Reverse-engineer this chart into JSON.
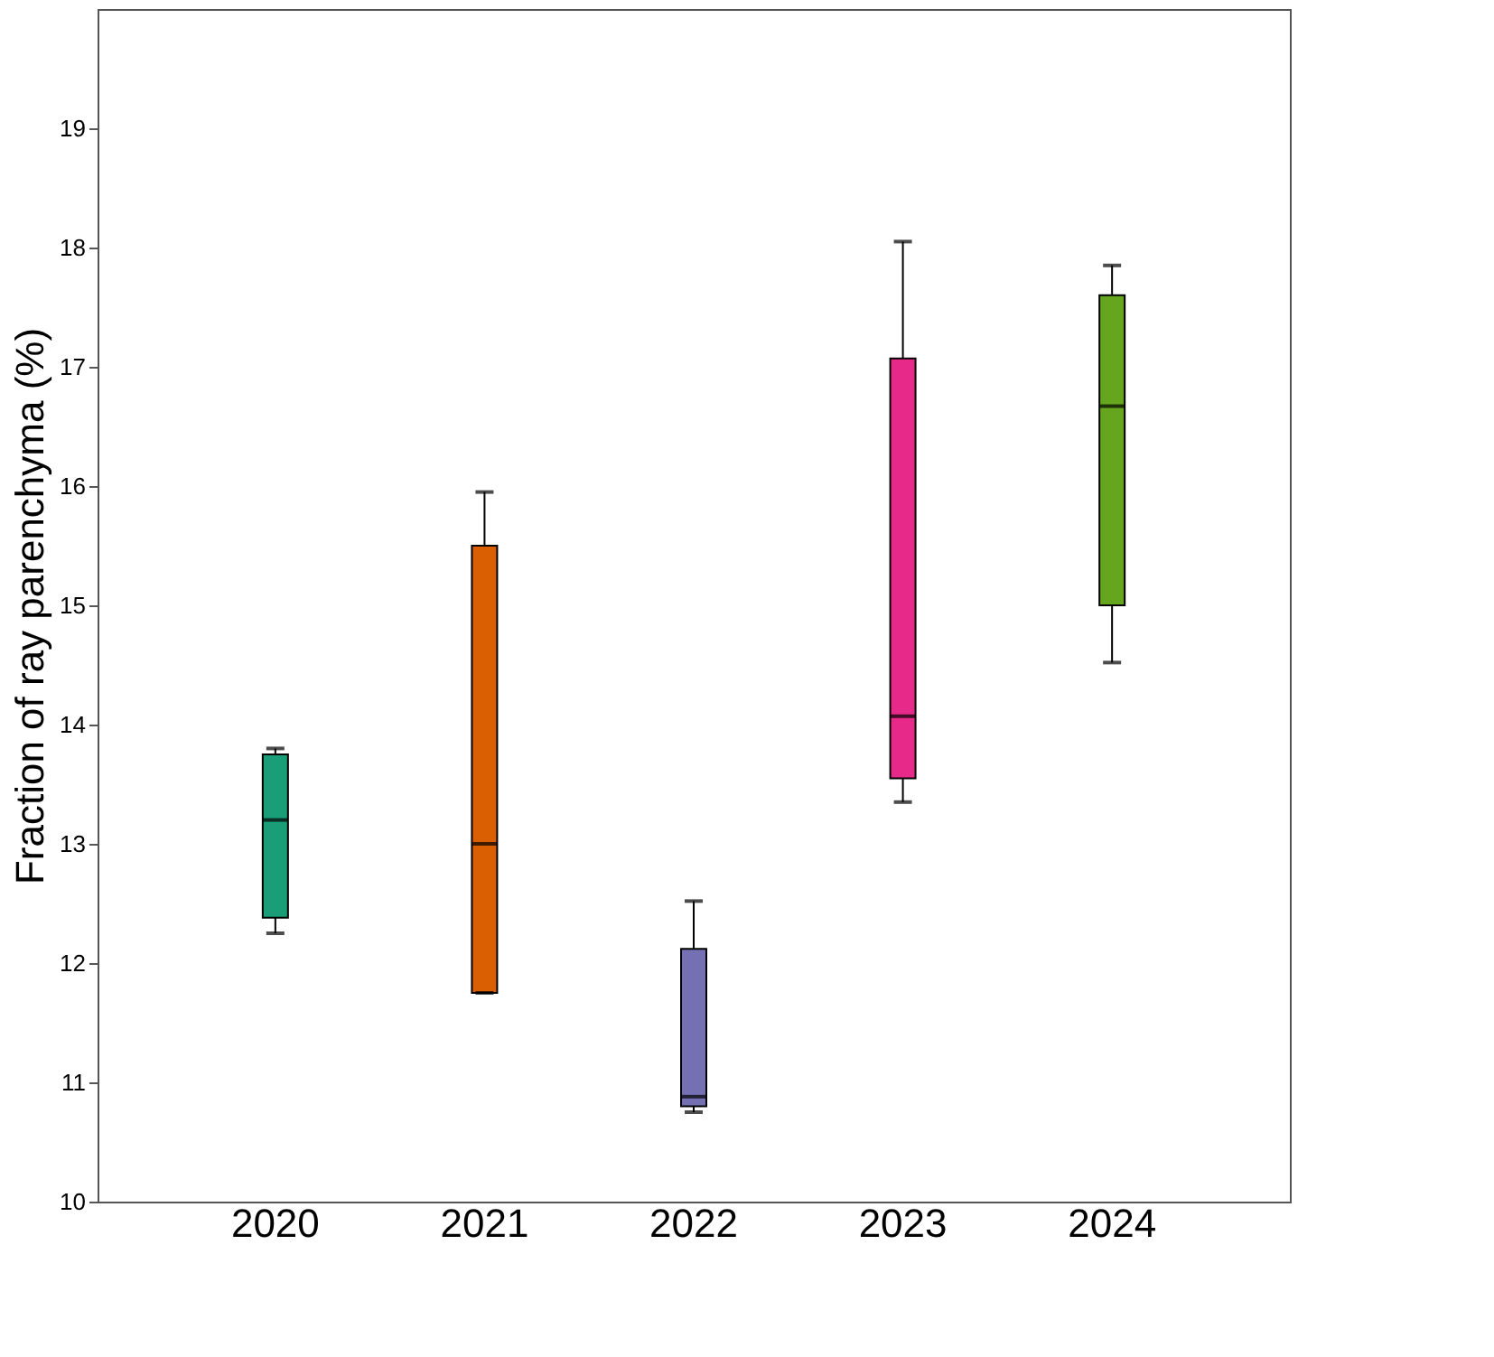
{
  "chart_data": {
    "type": "box",
    "ylabel": "Fraction of ray parenchyma (%)",
    "categories": [
      "2020",
      "2021",
      "2022",
      "2023",
      "2024"
    ],
    "colors": [
      "#1a9e77",
      "#d95f02",
      "#7570b3",
      "#e7298a",
      "#66a61e"
    ],
    "boxes": [
      {
        "low": 12.25,
        "q1": 12.38,
        "median": 13.2,
        "q3": 13.75,
        "high": 13.8
      },
      {
        "low": 11.75,
        "q1": 11.75,
        "median": 13.0,
        "q3": 15.5,
        "high": 15.95
      },
      {
        "low": 10.75,
        "q1": 10.8,
        "median": 10.88,
        "q3": 12.12,
        "high": 12.52
      },
      {
        "low": 13.35,
        "q1": 13.55,
        "median": 14.07,
        "q3": 17.07,
        "high": 18.05
      },
      {
        "low": 14.52,
        "q1": 15.0,
        "median": 16.67,
        "q3": 17.6,
        "high": 17.85
      }
    ],
    "ylim": [
      10,
      20
    ],
    "yticks": [
      10,
      11,
      12,
      13,
      14,
      15,
      16,
      17,
      18,
      19
    ],
    "grid": false
  }
}
